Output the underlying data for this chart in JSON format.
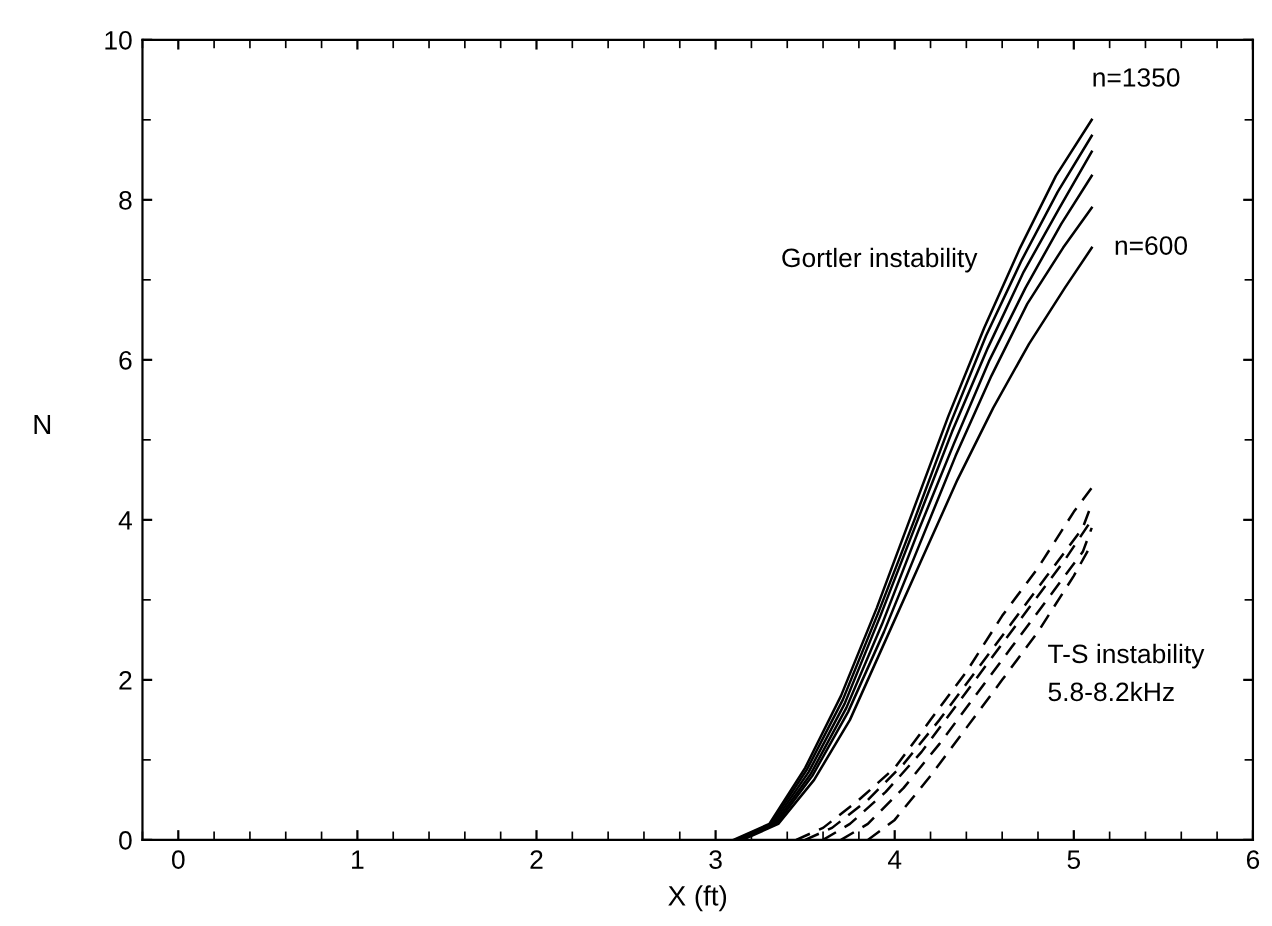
{
  "chart_data": {
    "type": "line",
    "xlabel": "X (ft)",
    "ylabel": "N",
    "xlim": [
      -0.2,
      6
    ],
    "ylim": [
      0,
      10
    ],
    "xticks": [
      0,
      1,
      2,
      3,
      4,
      5,
      6
    ],
    "yticks": [
      0,
      2,
      4,
      6,
      8,
      10
    ],
    "grid": false,
    "legend": false,
    "marker": "none",
    "series": [
      {
        "color": "#000000",
        "line_style": "solid",
        "x": [
          3.1,
          3.3,
          3.5,
          3.7,
          3.9,
          4.1,
          4.3,
          4.5,
          4.7,
          4.9,
          5.1
        ],
        "values": [
          0,
          0.2,
          0.9,
          1.8,
          2.9,
          4.1,
          5.3,
          6.4,
          7.4,
          8.3,
          9.0
        ]
      },
      {
        "color": "#000000",
        "line_style": "solid",
        "x": [
          3.11,
          3.31,
          3.51,
          3.71,
          3.91,
          4.11,
          4.31,
          4.51,
          4.71,
          4.91,
          5.1
        ],
        "values": [
          0,
          0.2,
          0.88,
          1.75,
          2.85,
          4.0,
          5.2,
          6.3,
          7.25,
          8.1,
          8.8
        ]
      },
      {
        "color": "#000000",
        "line_style": "solid",
        "x": [
          3.12,
          3.32,
          3.52,
          3.72,
          3.92,
          4.12,
          4.32,
          4.52,
          4.72,
          4.92,
          5.1
        ],
        "values": [
          0,
          0.2,
          0.85,
          1.7,
          2.8,
          3.95,
          5.1,
          6.15,
          7.1,
          7.9,
          8.6
        ]
      },
      {
        "color": "#000000",
        "line_style": "solid",
        "x": [
          3.13,
          3.33,
          3.53,
          3.73,
          3.93,
          4.13,
          4.33,
          4.53,
          4.73,
          4.93,
          5.1
        ],
        "values": [
          0,
          0.2,
          0.82,
          1.65,
          2.7,
          3.85,
          4.95,
          6.0,
          6.9,
          7.7,
          8.3
        ]
      },
      {
        "color": "#000000",
        "line_style": "solid",
        "x": [
          3.14,
          3.34,
          3.54,
          3.74,
          3.94,
          4.14,
          4.34,
          4.54,
          4.74,
          4.94,
          5.1
        ],
        "values": [
          0,
          0.2,
          0.8,
          1.6,
          2.6,
          3.7,
          4.8,
          5.8,
          6.7,
          7.4,
          7.9
        ]
      },
      {
        "color": "#000000",
        "line_style": "solid",
        "x": [
          3.15,
          3.35,
          3.55,
          3.75,
          3.95,
          4.15,
          4.35,
          4.55,
          4.75,
          4.95,
          5.1
        ],
        "values": [
          0,
          0.2,
          0.75,
          1.5,
          2.5,
          3.5,
          4.5,
          5.4,
          6.2,
          6.9,
          7.4
        ]
      },
      {
        "color": "#000000",
        "line_style": "dashed",
        "x": [
          3.45,
          3.6,
          3.8,
          4.0,
          4.2,
          4.4,
          4.6,
          4.8,
          5.0,
          5.1
        ],
        "values": [
          0,
          0.15,
          0.5,
          0.9,
          1.5,
          2.1,
          2.8,
          3.4,
          4.1,
          4.4
        ]
      },
      {
        "color": "#000000",
        "line_style": "dashed",
        "x": [
          3.5,
          3.65,
          3.85,
          4.05,
          4.25,
          4.45,
          4.65,
          4.85,
          5.05,
          5.1
        ],
        "values": [
          0,
          0.15,
          0.5,
          0.95,
          1.5,
          2.1,
          2.7,
          3.3,
          3.9,
          4.2
        ]
      },
      {
        "color": "#000000",
        "line_style": "dashed",
        "x": [
          3.6,
          3.75,
          3.95,
          4.15,
          4.35,
          4.55,
          4.75,
          4.95,
          5.1
        ],
        "values": [
          0,
          0.2,
          0.6,
          1.1,
          1.7,
          2.3,
          2.9,
          3.5,
          4.0
        ]
      },
      {
        "color": "#000000",
        "line_style": "dashed",
        "x": [
          3.7,
          3.85,
          4.05,
          4.25,
          4.45,
          4.65,
          4.85,
          5.05,
          5.1
        ],
        "values": [
          0,
          0.2,
          0.65,
          1.2,
          1.8,
          2.4,
          3.0,
          3.6,
          3.9
        ]
      },
      {
        "color": "#000000",
        "line_style": "dashed",
        "x": [
          3.85,
          4.0,
          4.2,
          4.4,
          4.6,
          4.8,
          5.0,
          5.1
        ],
        "values": [
          0,
          0.25,
          0.8,
          1.4,
          2.0,
          2.6,
          3.3,
          3.7
        ]
      }
    ],
    "annotations": [
      {
        "text": "n=1350",
        "x": 5.1,
        "y": 9.0
      },
      {
        "text": "n=600",
        "x": 5.1,
        "y": 7.4
      },
      "Gortler instability",
      "T-S instability\n5.8-8.2kHz"
    ]
  }
}
